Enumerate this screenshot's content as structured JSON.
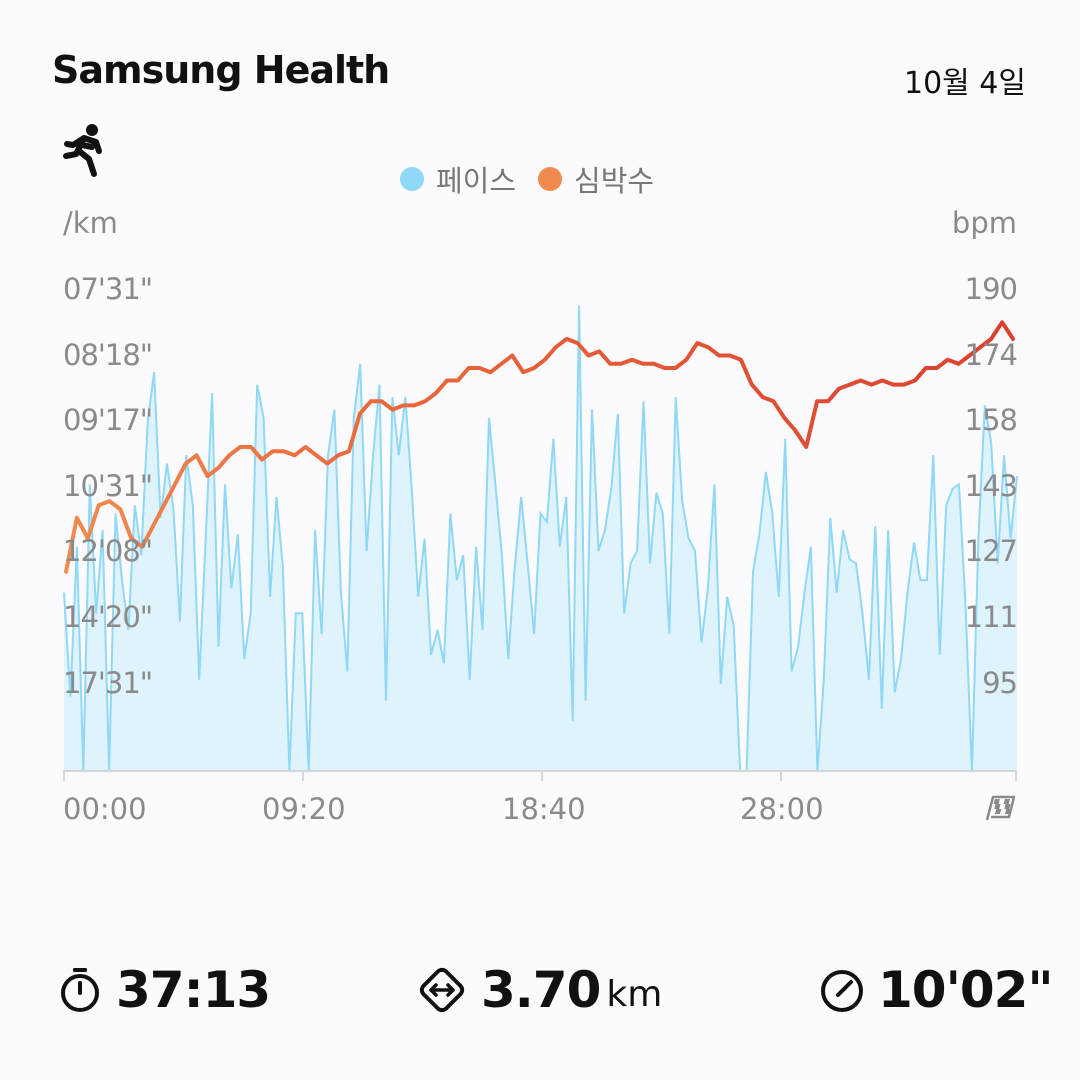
{
  "header": {
    "brand": "Samsung Health",
    "date": "10월 4일",
    "activity_icon": "running-person-icon"
  },
  "legend": [
    {
      "label": "페이스",
      "color": "#8fd8f7"
    },
    {
      "label": "심박수",
      "color": "#f07b44"
    }
  ],
  "axes": {
    "left_unit": "/km",
    "right_unit": "bpm",
    "left_ticks": [
      "07'31\"",
      "08'18\"",
      "09'17\"",
      "10'31\"",
      "12'08\"",
      "14'20\"",
      "17'31\""
    ],
    "right_ticks": [
      "190",
      "174",
      "158",
      "143",
      "127",
      "111",
      "95"
    ],
    "x_ticks": [
      "00:00",
      "09:20",
      "18:40",
      "28:00"
    ],
    "x_end_icon": "checkered-flag-icon"
  },
  "stats": {
    "duration": {
      "icon": "stopwatch-icon",
      "value": "37:13"
    },
    "distance": {
      "icon": "distance-arrows-icon",
      "value": "3.70",
      "unit": "km"
    },
    "pace": {
      "icon": "speedometer-icon",
      "value": "10'02\""
    }
  },
  "chart_data": {
    "type": "line",
    "x_label": "",
    "x_ticks": [
      "00:00",
      "09:20",
      "18:40",
      "28:00"
    ],
    "series": [
      {
        "name": "페이스",
        "color": "#8fd8f7",
        "fill": "#dff3fc",
        "y_axis": "left",
        "ylim": [
          70,
          190
        ],
        "y_ticks_bpm_scale": [
          190,
          174,
          158,
          143,
          127,
          111,
          95
        ],
        "values": [
          117,
          92,
          128,
          70,
          143,
          112,
          132,
          70,
          136,
          120,
          108,
          138,
          126,
          158,
          170,
          135,
          148,
          137,
          110,
          150,
          138,
          96,
          130,
          165,
          104,
          143,
          118,
          131,
          101,
          112,
          167,
          159,
          116,
          140,
          123,
          70,
          112,
          112,
          70,
          132,
          107,
          150,
          161,
          117,
          98,
          159,
          172,
          127,
          150,
          167,
          91,
          164,
          150,
          164,
          142,
          116,
          130,
          102,
          108,
          100,
          136,
          120,
          126,
          96,
          128,
          108,
          159,
          143,
          126,
          101,
          123,
          140,
          124,
          107,
          136,
          134,
          154,
          128,
          140,
          86,
          186,
          91,
          161,
          127,
          132,
          142,
          160,
          112,
          124,
          127,
          163,
          124,
          141,
          136,
          107,
          164,
          139,
          130,
          127,
          105,
          118,
          143,
          95,
          116,
          109,
          72,
          70,
          122,
          131,
          146,
          136,
          116,
          154,
          98,
          104,
          117,
          128,
          70,
          96,
          135,
          117,
          132,
          125,
          124,
          112,
          96,
          133,
          89,
          132,
          93,
          101,
          117,
          129,
          120,
          120,
          150,
          102,
          138,
          142,
          143,
          114,
          70,
          130,
          162,
          153,
          124,
          150,
          130,
          145
        ]
      },
      {
        "name": "심박수",
        "color": "#e04a32",
        "y_axis": "right",
        "ylim": [
          70,
          190
        ],
        "values": [
          122,
          135,
          130,
          138,
          139,
          137,
          130,
          128,
          133,
          138,
          143,
          148,
          150,
          145,
          147,
          150,
          152,
          152,
          149,
          151,
          151,
          150,
          152,
          150,
          148,
          150,
          151,
          160,
          163,
          163,
          161,
          162,
          162,
          163,
          165,
          168,
          168,
          171,
          171,
          170,
          172,
          174,
          170,
          171,
          173,
          176,
          178,
          177,
          174,
          175,
          172,
          172,
          173,
          172,
          172,
          171,
          171,
          173,
          177,
          176,
          174,
          174,
          173,
          167,
          164,
          163,
          159,
          156,
          152,
          163,
          163,
          166,
          167,
          168,
          167,
          168,
          167,
          167,
          168,
          171,
          171,
          173,
          172,
          174,
          176,
          178,
          182,
          178
        ]
      }
    ]
  }
}
